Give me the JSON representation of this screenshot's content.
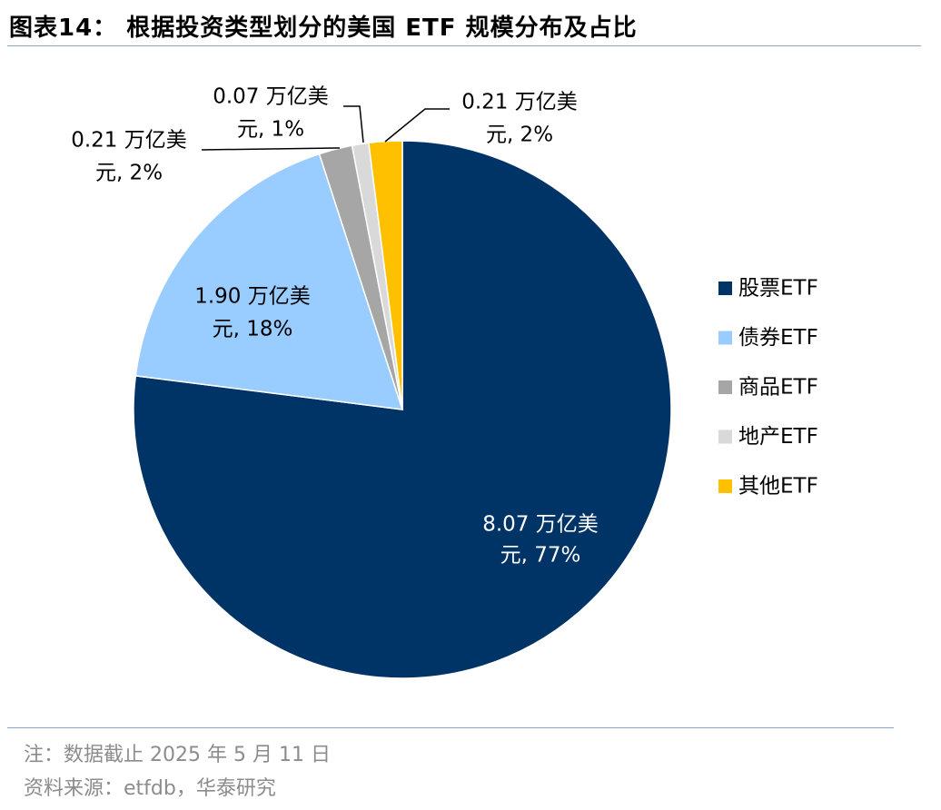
{
  "title": "图表14：  根据投资类型划分的美国 ETF 规模分布及占比",
  "chart_data": {
    "type": "pie",
    "title": "根据投资类型划分的美国 ETF 规模分布及占比",
    "unit": "万亿美元",
    "slices": [
      {
        "name": "股票ETF",
        "value": 8.07,
        "percent": 77,
        "color": "#003366",
        "label_line1": "8.07 万亿美",
        "label_line2": "元, 77%",
        "label_color": "#ffffff"
      },
      {
        "name": "债券ETF",
        "value": 1.9,
        "percent": 18,
        "color": "#99ccff",
        "label_line1": "1.90 万亿美",
        "label_line2": "元, 18%",
        "label_color": "#000000"
      },
      {
        "name": "商品ETF",
        "value": 0.21,
        "percent": 2,
        "color": "#a6a6a6",
        "label_line1": "0.21 万亿美",
        "label_line2": "元, 2%",
        "label_color": "#000000"
      },
      {
        "name": "地产ETF",
        "value": 0.07,
        "percent": 1,
        "color": "#d9d9d9",
        "label_line1": "0.07 万亿美",
        "label_line2": "元, 1%",
        "label_color": "#000000"
      },
      {
        "name": "其他ETF",
        "value": 0.21,
        "percent": 2,
        "color": "#ffc000",
        "label_line1": "0.21 万亿美",
        "label_line2": "元, 2%",
        "label_color": "#000000"
      }
    ],
    "legend_position": "right"
  },
  "notes": {
    "note": "注：数据截止 2025 年 5 月 11 日",
    "source": "资料来源：etfdb，华泰研究"
  }
}
